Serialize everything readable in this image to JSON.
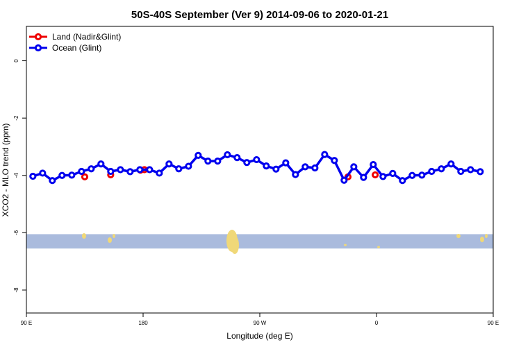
{
  "chart_data": {
    "type": "line",
    "title": "50S-40S September (Ver 9)   2014-09-06 to 2020-01-21",
    "xlabel": "Longitude (deg E)",
    "ylabel": "XCO2 - MLO trend (ppm)",
    "xlim": [
      90,
      450
    ],
    "ylim": [
      -8.8,
      1.2
    ],
    "x_ticks": [
      {
        "value": 90,
        "label": "90 E"
      },
      {
        "value": 180,
        "label": "180"
      },
      {
        "value": 270,
        "label": "90 W"
      },
      {
        "value": 360,
        "label": "0"
      },
      {
        "value": 450,
        "label": "90 E"
      },
      {
        "value": 540,
        "label": "180"
      }
    ],
    "y_ticks": [
      {
        "value": 0,
        "label": "0"
      },
      {
        "value": -2,
        "label": "-2"
      },
      {
        "value": -4,
        "label": "-4"
      },
      {
        "value": -6,
        "label": "-6"
      },
      {
        "value": -8,
        "label": "-8"
      }
    ],
    "legend": {
      "position": "top-left",
      "entries": [
        {
          "label": "Land (Nadir&Glint)",
          "color": "#ee0000"
        },
        {
          "label": "Ocean (Glint)",
          "color": "#0000ee"
        }
      ]
    },
    "series": [
      {
        "name": "Land (Nadir&Glint)",
        "color": "#ee0000",
        "style": "points",
        "x": [
          135,
          155,
          178,
          181,
          338,
          359
        ],
        "y": [
          -4.05,
          -3.98,
          -3.82,
          -3.8,
          -4.05,
          -3.98
        ]
      },
      {
        "name": "Ocean (Glint)",
        "color": "#0000ee",
        "style": "line",
        "x": [
          95,
          102.5,
          110,
          117.5,
          125,
          132.5,
          140,
          147.5,
          155,
          162.5,
          170,
          177.5,
          185,
          192.5,
          200,
          207.5,
          215,
          222.5,
          230,
          237.5,
          245,
          252.5,
          260,
          267.5,
          275,
          282.5,
          290,
          297.5,
          305,
          312.5,
          320,
          327.5,
          335,
          342.5,
          350,
          357.5,
          365,
          372.5,
          380,
          387.5,
          395,
          402.5,
          410,
          417.5,
          425,
          432.5,
          440
        ],
        "y": [
          -4.03,
          -3.92,
          -4.18,
          -4.0,
          -3.99,
          -3.86,
          -3.77,
          -3.6,
          -3.86,
          -3.8,
          -3.87,
          -3.8,
          -3.8,
          -3.92,
          -3.6,
          -3.77,
          -3.68,
          -3.3,
          -3.5,
          -3.5,
          -3.28,
          -3.38,
          -3.55,
          -3.45,
          -3.67,
          -3.78,
          -3.56,
          -3.97,
          -3.7,
          -3.74,
          -3.27,
          -3.48,
          -4.17,
          -3.7,
          -4.07,
          -3.62,
          -4.04,
          -3.93,
          -4.18,
          -4.0,
          -3.99,
          -3.86,
          -3.77,
          -3.6,
          -3.86,
          -3.8,
          -3.87
        ]
      }
    ],
    "map_strip": {
      "y_range": [
        -6.55,
        -6.05
      ],
      "ocean_color": "#aabbdd",
      "land_color": "#f0d878"
    }
  }
}
